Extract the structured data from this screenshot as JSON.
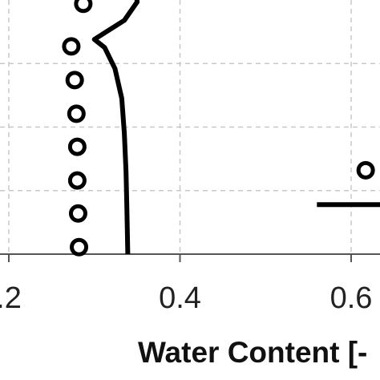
{
  "chart_data": {
    "type": "scatter",
    "xlabel": "Water Content [-",
    "xlim": [
      0.19,
      0.64
    ],
    "ylim": [
      0,
      8
    ],
    "x_ticks": [
      {
        "value": 0.2,
        "label": ".2"
      },
      {
        "value": 0.4,
        "label": "0.4"
      },
      {
        "value": 0.6,
        "label": "0.6"
      }
    ],
    "y_gridlines": [
      1,
      2,
      3,
      4,
      5,
      6,
      7
    ],
    "grid": true,
    "series": [
      {
        "kind": "points",
        "points": [
          {
            "x": 0.287,
            "y": 3.94
          },
          {
            "x": 0.273,
            "y": 3.27
          },
          {
            "x": 0.277,
            "y": 2.74
          },
          {
            "x": 0.279,
            "y": 2.21
          },
          {
            "x": 0.28,
            "y": 1.69
          },
          {
            "x": 0.28,
            "y": 1.16
          },
          {
            "x": 0.281,
            "y": 0.64
          },
          {
            "x": 0.282,
            "y": 0.11
          },
          {
            "x": 0.617,
            "y": 1.32
          }
        ]
      },
      {
        "kind": "line",
        "points": [
          {
            "x": 0.348,
            "y": 4.2
          },
          {
            "x": 0.35,
            "y": 3.97
          },
          {
            "x": 0.335,
            "y": 3.68
          },
          {
            "x": 0.3,
            "y": 3.38
          },
          {
            "x": 0.312,
            "y": 3.25
          },
          {
            "x": 0.324,
            "y": 2.92
          },
          {
            "x": 0.332,
            "y": 2.45
          },
          {
            "x": 0.335,
            "y": 1.9
          },
          {
            "x": 0.337,
            "y": 1.3
          },
          {
            "x": 0.338,
            "y": 0.7
          },
          {
            "x": 0.339,
            "y": 0.0
          }
        ]
      },
      {
        "kind": "line",
        "points": [
          {
            "x": 0.56,
            "y": 0.78
          },
          {
            "x": 0.64,
            "y": 0.78
          }
        ]
      }
    ]
  }
}
